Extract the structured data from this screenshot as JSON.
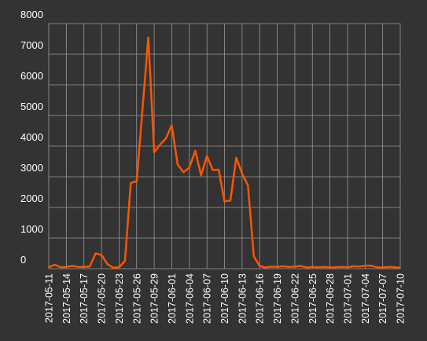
{
  "chart_data": {
    "type": "line",
    "title": "",
    "xlabel": "",
    "ylabel": "",
    "ylim": [
      0,
      8000
    ],
    "yticks": [
      0,
      1000,
      2000,
      3000,
      4000,
      5000,
      6000,
      7000,
      8000
    ],
    "x_tick_labels": [
      "2017-05-11",
      "2017-05-14",
      "2017-05-17",
      "2017-05-20",
      "2017-05-23",
      "2017-05-26",
      "2017-05-29",
      "2017-06-01",
      "2017-06-04",
      "2017-06-07",
      "2017-06-10",
      "2017-06-13",
      "2017-06-16",
      "2017-06-19",
      "2017-06-22",
      "2017-06-25",
      "2017-06-28",
      "2017-07-01",
      "2017-07-04",
      "2017-07-07",
      "2017-07-10"
    ],
    "grid": true,
    "colors": {
      "background": "#333333",
      "grid": "#9a9a9a",
      "line": "#ff5500",
      "text": "#ffffff"
    },
    "series": [
      {
        "x": [
          "2017-05-11",
          "2017-05-12",
          "2017-05-13",
          "2017-05-14",
          "2017-05-15",
          "2017-05-16",
          "2017-05-17",
          "2017-05-18",
          "2017-05-19",
          "2017-05-20",
          "2017-05-21",
          "2017-05-22",
          "2017-05-23",
          "2017-05-24",
          "2017-05-25",
          "2017-05-26",
          "2017-05-27",
          "2017-05-28",
          "2017-05-29",
          "2017-05-30",
          "2017-05-31",
          "2017-06-01",
          "2017-06-02",
          "2017-06-03",
          "2017-06-04",
          "2017-06-05",
          "2017-06-06",
          "2017-06-07",
          "2017-06-08",
          "2017-06-09",
          "2017-06-10",
          "2017-06-11",
          "2017-06-12",
          "2017-06-13",
          "2017-06-14",
          "2017-06-15",
          "2017-06-16",
          "2017-06-17",
          "2017-06-18",
          "2017-06-19",
          "2017-06-20",
          "2017-06-21",
          "2017-06-22",
          "2017-06-23",
          "2017-06-24",
          "2017-06-25",
          "2017-06-26",
          "2017-06-27",
          "2017-06-28",
          "2017-06-29",
          "2017-06-30",
          "2017-07-01",
          "2017-07-02",
          "2017-07-03",
          "2017-07-04",
          "2017-07-05",
          "2017-07-06",
          "2017-07-07",
          "2017-07-08",
          "2017-07-09",
          "2017-07-10"
        ],
        "values": [
          40,
          130,
          50,
          60,
          90,
          60,
          60,
          70,
          500,
          450,
          150,
          30,
          50,
          250,
          2800,
          2850,
          5200,
          7550,
          3800,
          4050,
          4250,
          4680,
          3400,
          3150,
          3300,
          3850,
          3050,
          3680,
          3220,
          3230,
          2200,
          2220,
          3620,
          3100,
          2720,
          400,
          90,
          40,
          70,
          60,
          80,
          60,
          70,
          90,
          40,
          60,
          50,
          60,
          40,
          50,
          60,
          50,
          80,
          70,
          100,
          100,
          50,
          40,
          60,
          50,
          30
        ]
      }
    ]
  }
}
